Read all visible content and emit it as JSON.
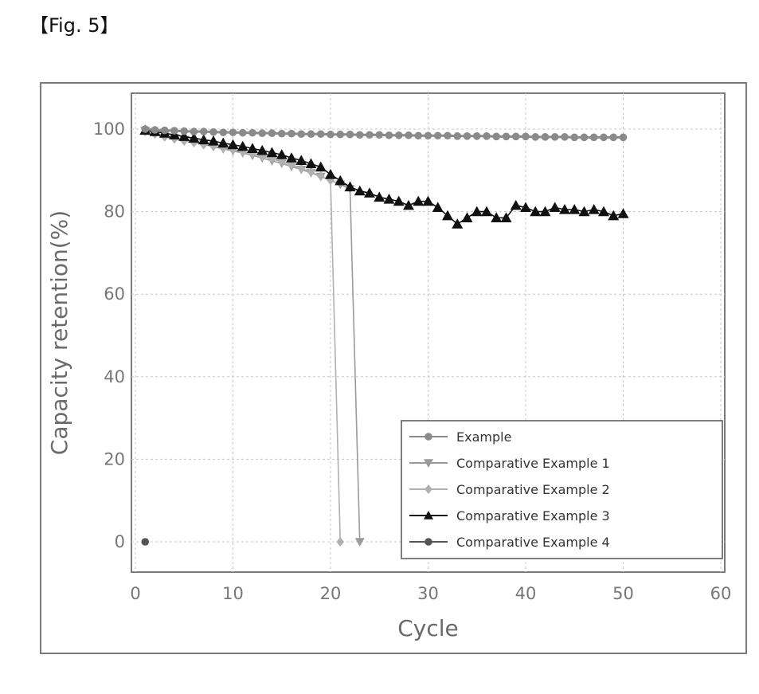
{
  "figure": {
    "label": "【Fig. 5】"
  },
  "chart_data": {
    "type": "line",
    "title": "",
    "xlabel": "Cycle",
    "ylabel": "Capacity retention(%)",
    "xlim": [
      0,
      60
    ],
    "ylim": [
      0,
      100
    ],
    "xticks": [
      0,
      10,
      20,
      30,
      40,
      50,
      60
    ],
    "yticks": [
      0,
      20,
      40,
      60,
      80,
      100
    ],
    "grid": true,
    "legend": "bottom-right",
    "series": [
      {
        "name": "Example",
        "marker": "circle",
        "color": "#8a8a8a",
        "x": [
          1,
          2,
          3,
          4,
          5,
          6,
          7,
          8,
          9,
          10,
          11,
          12,
          13,
          14,
          15,
          16,
          17,
          18,
          19,
          20,
          21,
          22,
          23,
          24,
          25,
          26,
          27,
          28,
          29,
          30,
          31,
          32,
          33,
          34,
          35,
          36,
          37,
          38,
          39,
          40,
          41,
          42,
          43,
          44,
          45,
          46,
          47,
          48,
          49,
          50
        ],
        "y": [
          100,
          99.8,
          99.7,
          99.6,
          99.5,
          99.4,
          99.4,
          99.3,
          99.2,
          99.2,
          99.1,
          99.1,
          99.0,
          99.0,
          98.9,
          98.9,
          98.8,
          98.8,
          98.8,
          98.7,
          98.7,
          98.7,
          98.6,
          98.6,
          98.6,
          98.5,
          98.5,
          98.5,
          98.4,
          98.4,
          98.4,
          98.4,
          98.3,
          98.3,
          98.3,
          98.3,
          98.2,
          98.2,
          98.2,
          98.2,
          98.1,
          98.1,
          98.1,
          98.1,
          98.0,
          98.0,
          98.0,
          98.0,
          98.0,
          98.0
        ]
      },
      {
        "name": "Comparative Example 1",
        "marker": "triangle-down",
        "color": "#9a9a9a",
        "x": [
          1,
          2,
          3,
          4,
          5,
          6,
          7,
          8,
          9,
          10,
          11,
          12,
          13,
          14,
          15,
          16,
          17,
          18,
          19,
          20,
          21,
          22,
          23
        ],
        "y": [
          99.6,
          99.0,
          98.5,
          97.9,
          97.4,
          96.9,
          96.3,
          95.7,
          95.2,
          94.7,
          94.2,
          93.6,
          93.0,
          92.3,
          91.7,
          90.9,
          90.2,
          89.4,
          88.5,
          87.6,
          86.6,
          85.5,
          0
        ]
      },
      {
        "name": "Comparative Example 2",
        "marker": "diamond",
        "color": "#b0b0b0",
        "x": [
          1,
          2,
          3,
          4,
          5,
          6,
          7,
          8,
          9,
          10,
          11,
          12,
          13,
          14,
          15,
          16,
          17,
          18,
          19,
          20,
          21
        ],
        "y": [
          99.4,
          98.8,
          98.1,
          97.6,
          97.1,
          96.7,
          96.2,
          95.8,
          95.4,
          95.0,
          94.5,
          94.0,
          93.4,
          92.8,
          92.1,
          91.3,
          90.5,
          89.6,
          88.6,
          87.6,
          0
        ]
      },
      {
        "name": "Comparative Example 3",
        "marker": "triangle-up",
        "color": "#111111",
        "x": [
          1,
          2,
          3,
          4,
          5,
          6,
          7,
          8,
          9,
          10,
          11,
          12,
          13,
          14,
          15,
          16,
          17,
          18,
          19,
          20,
          21,
          22,
          23,
          24,
          25,
          26,
          27,
          28,
          29,
          30,
          31,
          32,
          33,
          34,
          35,
          36,
          37,
          38,
          39,
          40,
          41,
          42,
          43,
          44,
          45,
          46,
          47,
          48,
          49,
          50
        ],
        "y": [
          99.7,
          99.4,
          99.0,
          98.6,
          98.2,
          97.8,
          97.4,
          97.1,
          96.6,
          96.2,
          95.8,
          95.3,
          94.8,
          94.3,
          93.8,
          93.0,
          92.4,
          91.6,
          90.8,
          89.0,
          87.5,
          86.0,
          85.0,
          84.5,
          83.5,
          83.0,
          82.5,
          81.5,
          82.5,
          82.5,
          81.0,
          79.0,
          77.0,
          78.5,
          80.0,
          80.0,
          78.5,
          78.5,
          81.5,
          81.0,
          80.0,
          80.0,
          81.0,
          80.5,
          80.5,
          80.0,
          80.5,
          80.0,
          79.0,
          79.5
        ]
      },
      {
        "name": "Comparative Example 4",
        "marker": "circle",
        "color": "#555555",
        "x": [
          1
        ],
        "y": [
          0
        ]
      }
    ]
  }
}
